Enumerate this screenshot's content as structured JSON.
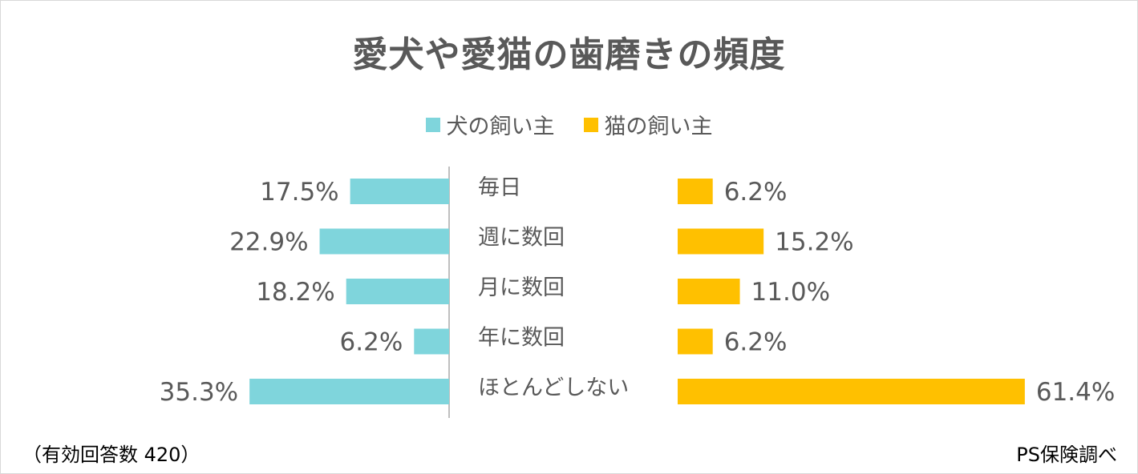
{
  "chart_data": {
    "type": "bar",
    "title": "愛犬や愛猫の歯磨きの頻度",
    "categories": [
      "毎日",
      "週に数回",
      "月に数回",
      "年に数回",
      "ほとんどしない"
    ],
    "series": [
      {
        "name": "犬の飼い主",
        "values": [
          17.5,
          22.9,
          18.2,
          6.2,
          35.3
        ],
        "labels": [
          "17.5%",
          "22.9%",
          "18.2%",
          "6.2%",
          "35.3%"
        ],
        "color": "#7fd5dc",
        "side": "left"
      },
      {
        "name": "猫の飼い主",
        "values": [
          6.2,
          15.2,
          11.0,
          6.2,
          61.4
        ],
        "labels": [
          "6.2%",
          "15.2%",
          "11.0%",
          "6.2%",
          "61.4%"
        ],
        "color": "#ffc000",
        "side": "right"
      }
    ],
    "unit": "%",
    "legend_position": "top-center"
  },
  "footer": {
    "note": "（有効回答数 420）",
    "source": "PS保険調べ"
  },
  "colors": {
    "text": "#595959",
    "axis": "#bfbfbf"
  }
}
